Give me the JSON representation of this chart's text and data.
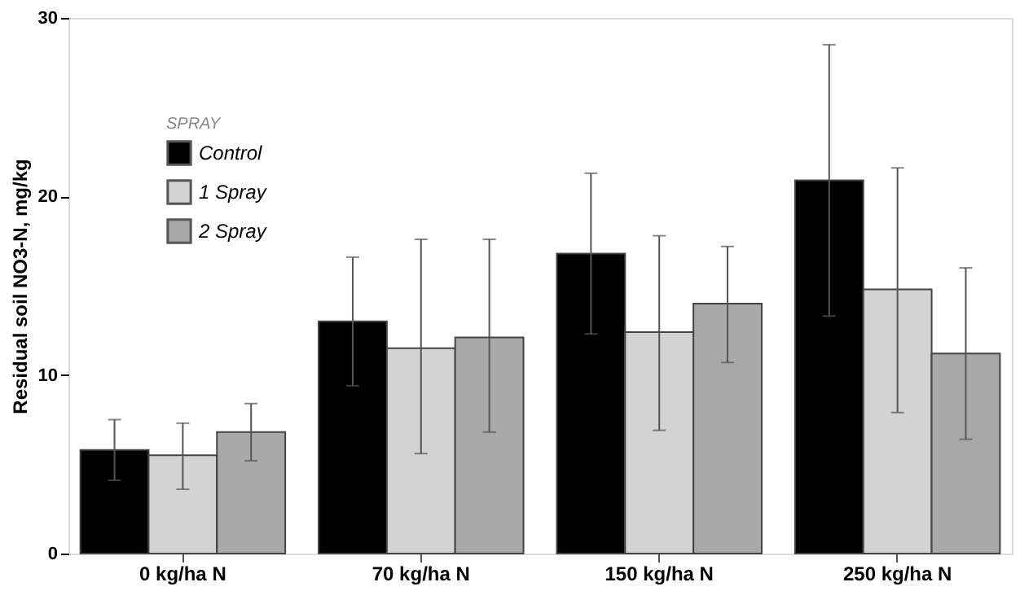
{
  "chart_data": {
    "type": "bar",
    "ylabel": "Residual soil NO3-N, mg/kg",
    "legend_title": "SPRAY",
    "categories": [
      "0 kg/ha N",
      "70 kg/ha N",
      "150 kg/ha N",
      "250 kg/ha N"
    ],
    "series": [
      {
        "name": "Control",
        "color": "#000000",
        "values": [
          5.8,
          13.0,
          16.8,
          20.9
        ],
        "errors": [
          1.7,
          3.6,
          4.5,
          7.6
        ]
      },
      {
        "name": "1 Spray",
        "color": "#d3d3d3",
        "values": [
          5.5,
          11.5,
          12.4,
          14.8
        ],
        "errors": [
          [
            3.6,
            7.3
          ],
          [
            5.6,
            17.6
          ],
          [
            6.9,
            17.8
          ],
          [
            7.9,
            21.6
          ]
        ]
      },
      {
        "name": "2 Spray",
        "color": "#a9a9a9",
        "values": [
          6.8,
          12.1,
          14.0,
          11.2
        ],
        "errors": [
          [
            5.2,
            8.4
          ],
          [
            6.8,
            17.6
          ],
          [
            10.7,
            17.2
          ],
          [
            6.4,
            16.0
          ]
        ]
      }
    ],
    "ylim": [
      0,
      30
    ],
    "yticks": [
      0,
      10,
      20,
      30
    ],
    "grid": false,
    "legend": "top left"
  }
}
